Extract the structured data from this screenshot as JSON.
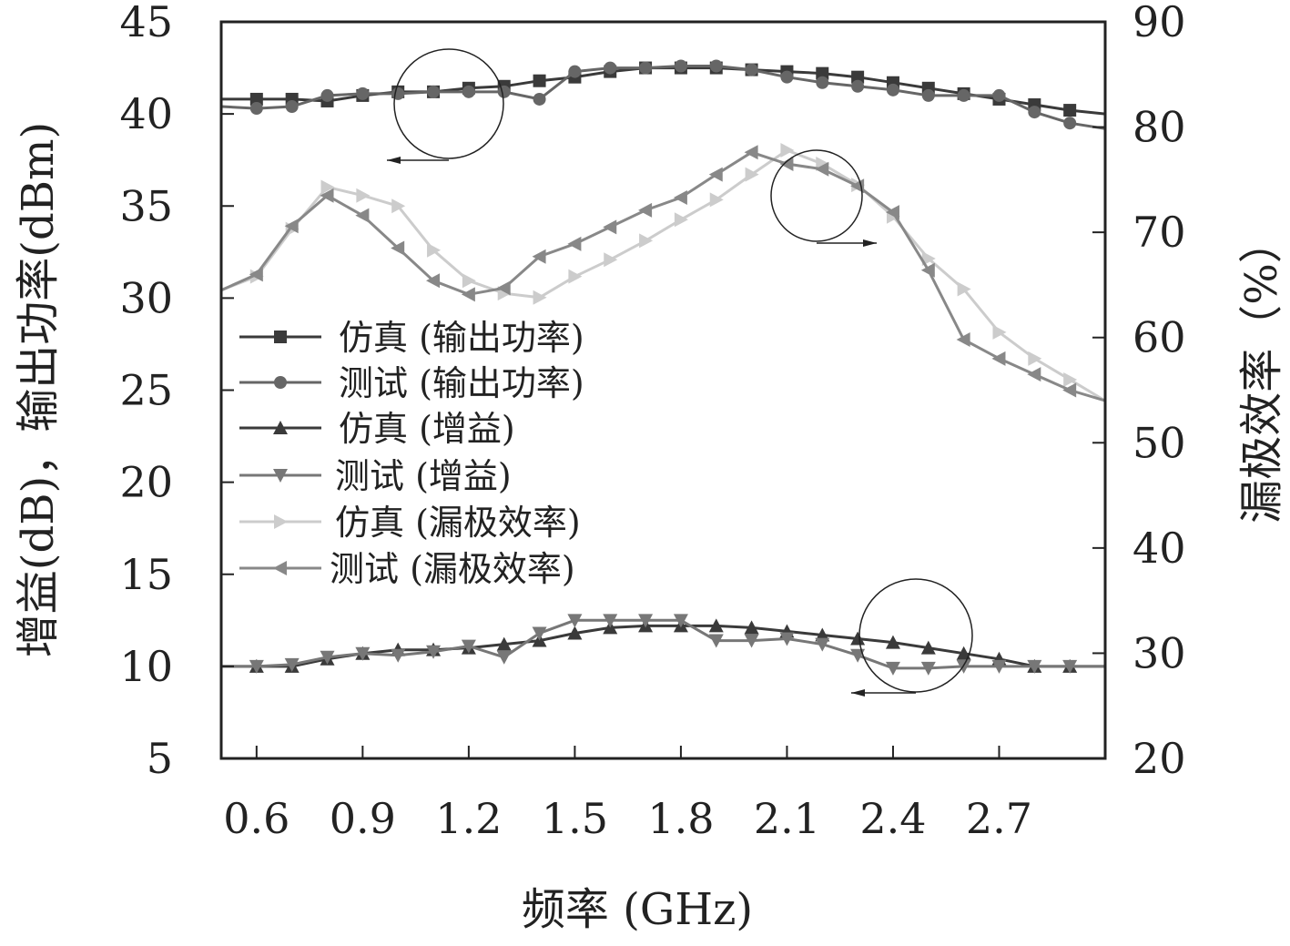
{
  "chart_data": {
    "type": "line",
    "xlabel": "频率 (GHz)",
    "ylabel_left": "增益(dB)，输出功率(dBm)",
    "ylabel_right": "漏极效率（%）",
    "x_ticks": [
      0.6,
      0.9,
      1.2,
      1.5,
      1.8,
      2.1,
      2.4,
      2.7
    ],
    "xlim": [
      0.5,
      3.0
    ],
    "ylim_left": [
      5,
      45
    ],
    "ylim_right": [
      20,
      90
    ],
    "y_ticks_left": [
      5,
      10,
      15,
      20,
      25,
      30,
      35,
      40,
      45
    ],
    "y_ticks_right": [
      20,
      30,
      40,
      50,
      60,
      70,
      80,
      90
    ],
    "grid": false,
    "legend_position": "center-left",
    "series": [
      {
        "name": "仿真 (输出功率)",
        "axis": "left",
        "marker": "square",
        "color": "#3a3a3a",
        "x": [
          0.5,
          0.6,
          0.7,
          0.8,
          0.9,
          1.0,
          1.1,
          1.2,
          1.3,
          1.4,
          1.5,
          1.6,
          1.7,
          1.8,
          1.9,
          2.0,
          2.1,
          2.2,
          2.3,
          2.4,
          2.5,
          2.6,
          2.7,
          2.8,
          2.9,
          3.0
        ],
        "y": [
          40.8,
          40.8,
          40.8,
          40.7,
          41.0,
          41.2,
          41.2,
          41.4,
          41.5,
          41.8,
          42.0,
          42.3,
          42.5,
          42.5,
          42.5,
          42.4,
          42.3,
          42.2,
          42.0,
          41.7,
          41.4,
          41.1,
          40.8,
          40.5,
          40.2,
          40.0
        ]
      },
      {
        "name": "测试 (输出功率)",
        "axis": "left",
        "marker": "circle",
        "color": "#666666",
        "x": [
          0.5,
          0.6,
          0.7,
          0.8,
          0.9,
          1.0,
          1.1,
          1.2,
          1.3,
          1.4,
          1.5,
          1.6,
          1.7,
          1.8,
          1.9,
          2.0,
          2.1,
          2.2,
          2.3,
          2.4,
          2.5,
          2.6,
          2.7,
          2.8,
          2.9,
          3.0
        ],
        "y": [
          40.4,
          40.3,
          40.4,
          41.0,
          41.1,
          41.1,
          41.2,
          41.2,
          41.2,
          40.8,
          42.3,
          42.5,
          42.5,
          42.6,
          42.6,
          42.4,
          42.0,
          41.7,
          41.5,
          41.3,
          41.0,
          41.0,
          41.0,
          40.1,
          39.5,
          39.2
        ]
      },
      {
        "name": "仿真 (增益)",
        "axis": "left",
        "marker": "triangle-up",
        "color": "#3a3a3a",
        "x": [
          0.5,
          0.6,
          0.7,
          0.8,
          0.9,
          1.0,
          1.1,
          1.2,
          1.3,
          1.4,
          1.5,
          1.6,
          1.7,
          1.8,
          1.9,
          2.0,
          2.1,
          2.2,
          2.3,
          2.4,
          2.5,
          2.6,
          2.7,
          2.8,
          2.9,
          3.0
        ],
        "y": [
          10.0,
          10.0,
          10.0,
          10.4,
          10.7,
          10.9,
          10.9,
          11.0,
          11.2,
          11.4,
          11.8,
          12.1,
          12.2,
          12.2,
          12.2,
          12.1,
          11.9,
          11.7,
          11.5,
          11.3,
          11.0,
          10.7,
          10.4,
          10.0,
          10.0,
          10.0
        ]
      },
      {
        "name": "测试 (增益)",
        "axis": "left",
        "marker": "triangle-down",
        "color": "#777777",
        "x": [
          0.5,
          0.6,
          0.7,
          0.8,
          0.9,
          1.0,
          1.1,
          1.2,
          1.3,
          1.4,
          1.5,
          1.6,
          1.7,
          1.8,
          1.9,
          2.0,
          2.1,
          2.2,
          2.3,
          2.4,
          2.5,
          2.6,
          2.7,
          2.8,
          2.9,
          3.0
        ],
        "y": [
          10.0,
          10.0,
          10.1,
          10.5,
          10.7,
          10.6,
          10.8,
          11.1,
          10.5,
          11.8,
          12.5,
          12.5,
          12.5,
          12.5,
          11.4,
          11.4,
          11.5,
          11.2,
          10.6,
          9.9,
          9.9,
          10.0,
          10.0,
          10.0,
          10.0,
          10.0
        ]
      },
      {
        "name": "仿真 (漏极效率)",
        "axis": "right",
        "marker": "triangle-right",
        "color": "#cccccc",
        "x": [
          0.5,
          0.6,
          0.7,
          0.8,
          0.9,
          1.0,
          1.1,
          1.2,
          1.3,
          1.4,
          1.5,
          1.6,
          1.7,
          1.8,
          1.9,
          2.0,
          2.1,
          2.2,
          2.3,
          2.4,
          2.5,
          2.6,
          2.7,
          2.8,
          2.9,
          3.0
        ],
        "y": [
          64.5,
          65.8,
          70.3,
          74.3,
          73.5,
          72.5,
          68.3,
          65.4,
          64.2,
          63.8,
          65.8,
          67.4,
          69.2,
          71.2,
          73.1,
          75.5,
          77.8,
          76.5,
          74.5,
          71.5,
          67.5,
          64.6,
          60.5,
          58.0,
          56.0,
          54.0
        ]
      },
      {
        "name": "测试 (漏极效率)",
        "axis": "right",
        "marker": "triangle-left",
        "color": "#888888",
        "x": [
          0.5,
          0.6,
          0.7,
          0.8,
          0.9,
          1.0,
          1.1,
          1.2,
          1.3,
          1.4,
          1.5,
          1.6,
          1.7,
          1.8,
          1.9,
          2.0,
          2.1,
          2.2,
          2.3,
          2.4,
          2.5,
          2.6,
          2.7,
          2.8,
          2.9,
          3.0
        ],
        "y": [
          64.5,
          66.0,
          70.6,
          73.5,
          71.6,
          68.5,
          65.4,
          64.1,
          64.7,
          67.7,
          68.9,
          70.5,
          72.1,
          73.3,
          75.5,
          77.6,
          76.5,
          76.0,
          74.4,
          71.9,
          66.4,
          59.8,
          58.0,
          56.5,
          55.0,
          54.0
        ]
      }
    ],
    "legend_entries": [
      "仿真 (输出功率)",
      "测试 (输出功率)",
      "仿真 (增益)",
      "测试 (增益)",
      "仿真 (漏极效率)",
      "测试 (漏极效率)"
    ]
  }
}
